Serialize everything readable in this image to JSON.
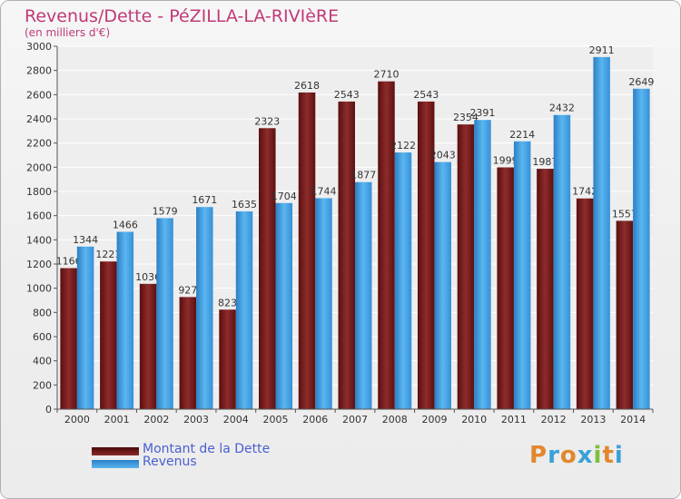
{
  "header": {
    "title": "Revenus/Dette - PéZILLA-LA-RIVIèRE",
    "subtitle": "(en milliers d'€)"
  },
  "legend": {
    "items": [
      {
        "label": "Montant de la Dette",
        "color": "#7a1c1c"
      },
      {
        "label": "Revenus",
        "color": "#3f9de0"
      }
    ]
  },
  "logo": {
    "letters": [
      "P",
      "r",
      "o",
      "x",
      "i",
      "t",
      "i"
    ],
    "colors": [
      "#e2872d",
      "#3aa0d8",
      "#e2872d",
      "#3aa0d8",
      "#7cbf3a",
      "#e2872d",
      "#3aa0d8"
    ]
  },
  "chart_data": {
    "type": "bar",
    "title": "Revenus/Dette - PéZILLA-LA-RIVIèRE",
    "subtitle": "(en milliers d'€)",
    "xlabel": "",
    "ylabel": "",
    "ylim": [
      0,
      3000
    ],
    "yticks": [
      0,
      200,
      400,
      600,
      800,
      1000,
      1200,
      1400,
      1600,
      1800,
      2000,
      2200,
      2400,
      2600,
      2800,
      3000
    ],
    "grid": true,
    "legend_position": "bottom-left",
    "categories": [
      "2000",
      "2001",
      "2002",
      "2003",
      "2004",
      "2005",
      "2006",
      "2007",
      "2008",
      "2009",
      "2010",
      "2011",
      "2012",
      "2013",
      "2014"
    ],
    "series": [
      {
        "name": "Montant de la Dette",
        "color": "#7a1c1c",
        "values": [
          1166,
          1221,
          1036,
          927,
          823,
          2323,
          2618,
          2543,
          2710,
          2543,
          2354,
          1999,
          1987,
          1742,
          1557
        ],
        "labels": [
          "1166",
          "1221",
          "1036",
          "927",
          "823",
          "2323",
          "2618",
          "2543",
          "2710",
          "2543",
          "2354",
          "1999",
          "1987",
          "1742",
          "1557"
        ]
      },
      {
        "name": "Revenus",
        "color": "#3f9de0",
        "values": [
          1344,
          1466,
          1579,
          1671,
          1635,
          1704,
          1744,
          1877,
          2122,
          2043,
          2391,
          2214,
          2432,
          2911,
          2649
        ],
        "labels": [
          "1344",
          "1466",
          "1579",
          "1671",
          "1635",
          "1704",
          "1744",
          "1877",
          "2122",
          "2043",
          "2391",
          "2214",
          "2432",
          "2911",
          "2649"
        ]
      }
    ]
  }
}
